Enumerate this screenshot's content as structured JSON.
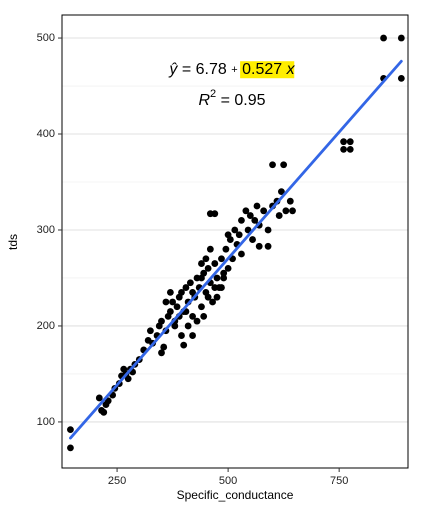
{
  "chart_data": {
    "type": "scatter",
    "x_label": "Specific_conductance",
    "y_label": "tds",
    "xlim": [
      126,
      905
    ],
    "ylim": [
      52,
      524
    ],
    "xticks": [
      250,
      500,
      750
    ],
    "yticks": [
      100,
      200,
      300,
      400,
      500
    ],
    "minor_yticks": [
      150,
      250,
      350,
      450
    ],
    "grid": true,
    "color": "#000000",
    "fit_color": "#3366e6",
    "equation": {
      "y_hat": "ŷ",
      "equals": "=",
      "plus": "+",
      "x": "x",
      "r": "R",
      "sup": "2"
    },
    "fit": {
      "intercept": 6.78,
      "slope": 0.527,
      "r_squared": 0.95,
      "x_range": [
        145,
        890
      ]
    },
    "x": [
      145,
      145,
      850,
      890,
      850,
      890,
      760,
      775,
      760,
      775,
      600,
      625,
      210,
      215,
      220,
      225,
      230,
      240,
      245,
      255,
      260,
      265,
      270,
      275,
      280,
      285,
      290,
      300,
      310,
      320,
      325,
      330,
      340,
      345,
      350,
      355,
      360,
      365,
      370,
      375,
      380,
      385,
      390,
      395,
      400,
      405,
      410,
      415,
      420,
      425,
      430,
      435,
      440,
      445,
      450,
      455,
      460,
      465,
      470,
      475,
      480,
      485,
      490,
      495,
      500,
      505,
      510,
      515,
      520,
      525,
      530,
      540,
      545,
      550,
      555,
      560,
      565,
      570,
      580,
      590,
      600,
      610,
      615,
      620,
      630,
      640,
      645,
      460,
      470,
      530,
      570,
      590,
      400,
      420,
      410,
      395,
      380,
      350,
      440,
      450,
      460,
      470,
      430,
      500,
      490,
      485,
      475,
      455,
      445,
      405,
      390,
      370,
      360,
      440,
      420
    ],
    "y": [
      92,
      73,
      500,
      500,
      458,
      458,
      392,
      392,
      384,
      384,
      368,
      368,
      125,
      112,
      110,
      118,
      122,
      128,
      135,
      140,
      148,
      155,
      150,
      145,
      155,
      152,
      160,
      165,
      175,
      185,
      195,
      182,
      190,
      200,
      205,
      178,
      195,
      210,
      215,
      225,
      205,
      220,
      230,
      235,
      215,
      240,
      225,
      245,
      210,
      230,
      250,
      240,
      220,
      255,
      235,
      260,
      245,
      225,
      265,
      250,
      240,
      270,
      255,
      280,
      260,
      290,
      270,
      300,
      285,
      295,
      310,
      320,
      300,
      315,
      290,
      310,
      325,
      305,
      320,
      300,
      325,
      330,
      315,
      340,
      320,
      330,
      320,
      317,
      317,
      275,
      283,
      283,
      180,
      190,
      200,
      190,
      200,
      172,
      250,
      270,
      280,
      240,
      205,
      295,
      250,
      240,
      230,
      230,
      210,
      215,
      210,
      235,
      225,
      265,
      235
    ]
  }
}
